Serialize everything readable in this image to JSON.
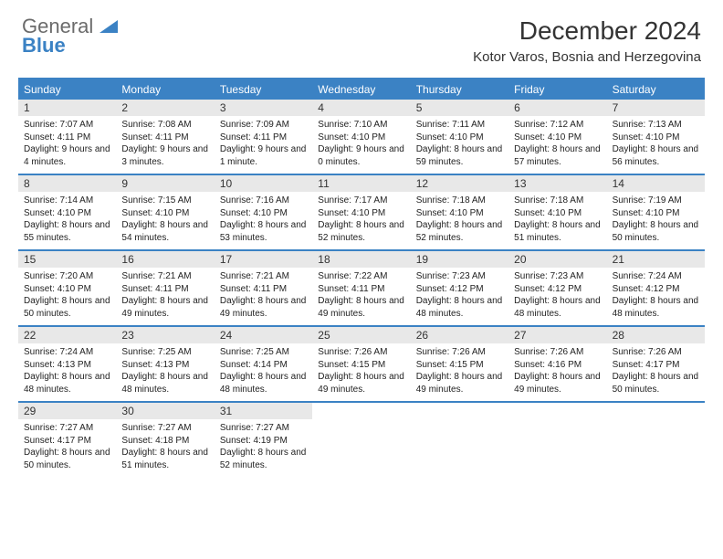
{
  "brand": {
    "general": "General",
    "blue": "Blue"
  },
  "title": "December 2024",
  "location": "Kotor Varos, Bosnia and Herzegovina",
  "colors": {
    "accent": "#3b82c4",
    "dow_bg": "#3b82c4",
    "dow_text": "#ffffff",
    "daynum_bg": "#e8e8e8",
    "text": "#333333",
    "background": "#ffffff"
  },
  "typography": {
    "title_fontsize": 28,
    "location_fontsize": 15,
    "dow_fontsize": 12,
    "daynum_fontsize": 12,
    "body_fontsize": 10
  },
  "dow": [
    "Sunday",
    "Monday",
    "Tuesday",
    "Wednesday",
    "Thursday",
    "Friday",
    "Saturday"
  ],
  "weeks": [
    [
      {
        "n": "1",
        "sunrise": "Sunrise: 7:07 AM",
        "sunset": "Sunset: 4:11 PM",
        "daylight": "Daylight: 9 hours and 4 minutes."
      },
      {
        "n": "2",
        "sunrise": "Sunrise: 7:08 AM",
        "sunset": "Sunset: 4:11 PM",
        "daylight": "Daylight: 9 hours and 3 minutes."
      },
      {
        "n": "3",
        "sunrise": "Sunrise: 7:09 AM",
        "sunset": "Sunset: 4:11 PM",
        "daylight": "Daylight: 9 hours and 1 minute."
      },
      {
        "n": "4",
        "sunrise": "Sunrise: 7:10 AM",
        "sunset": "Sunset: 4:10 PM",
        "daylight": "Daylight: 9 hours and 0 minutes."
      },
      {
        "n": "5",
        "sunrise": "Sunrise: 7:11 AM",
        "sunset": "Sunset: 4:10 PM",
        "daylight": "Daylight: 8 hours and 59 minutes."
      },
      {
        "n": "6",
        "sunrise": "Sunrise: 7:12 AM",
        "sunset": "Sunset: 4:10 PM",
        "daylight": "Daylight: 8 hours and 57 minutes."
      },
      {
        "n": "7",
        "sunrise": "Sunrise: 7:13 AM",
        "sunset": "Sunset: 4:10 PM",
        "daylight": "Daylight: 8 hours and 56 minutes."
      }
    ],
    [
      {
        "n": "8",
        "sunrise": "Sunrise: 7:14 AM",
        "sunset": "Sunset: 4:10 PM",
        "daylight": "Daylight: 8 hours and 55 minutes."
      },
      {
        "n": "9",
        "sunrise": "Sunrise: 7:15 AM",
        "sunset": "Sunset: 4:10 PM",
        "daylight": "Daylight: 8 hours and 54 minutes."
      },
      {
        "n": "10",
        "sunrise": "Sunrise: 7:16 AM",
        "sunset": "Sunset: 4:10 PM",
        "daylight": "Daylight: 8 hours and 53 minutes."
      },
      {
        "n": "11",
        "sunrise": "Sunrise: 7:17 AM",
        "sunset": "Sunset: 4:10 PM",
        "daylight": "Daylight: 8 hours and 52 minutes."
      },
      {
        "n": "12",
        "sunrise": "Sunrise: 7:18 AM",
        "sunset": "Sunset: 4:10 PM",
        "daylight": "Daylight: 8 hours and 52 minutes."
      },
      {
        "n": "13",
        "sunrise": "Sunrise: 7:18 AM",
        "sunset": "Sunset: 4:10 PM",
        "daylight": "Daylight: 8 hours and 51 minutes."
      },
      {
        "n": "14",
        "sunrise": "Sunrise: 7:19 AM",
        "sunset": "Sunset: 4:10 PM",
        "daylight": "Daylight: 8 hours and 50 minutes."
      }
    ],
    [
      {
        "n": "15",
        "sunrise": "Sunrise: 7:20 AM",
        "sunset": "Sunset: 4:10 PM",
        "daylight": "Daylight: 8 hours and 50 minutes."
      },
      {
        "n": "16",
        "sunrise": "Sunrise: 7:21 AM",
        "sunset": "Sunset: 4:11 PM",
        "daylight": "Daylight: 8 hours and 49 minutes."
      },
      {
        "n": "17",
        "sunrise": "Sunrise: 7:21 AM",
        "sunset": "Sunset: 4:11 PM",
        "daylight": "Daylight: 8 hours and 49 minutes."
      },
      {
        "n": "18",
        "sunrise": "Sunrise: 7:22 AM",
        "sunset": "Sunset: 4:11 PM",
        "daylight": "Daylight: 8 hours and 49 minutes."
      },
      {
        "n": "19",
        "sunrise": "Sunrise: 7:23 AM",
        "sunset": "Sunset: 4:12 PM",
        "daylight": "Daylight: 8 hours and 48 minutes."
      },
      {
        "n": "20",
        "sunrise": "Sunrise: 7:23 AM",
        "sunset": "Sunset: 4:12 PM",
        "daylight": "Daylight: 8 hours and 48 minutes."
      },
      {
        "n": "21",
        "sunrise": "Sunrise: 7:24 AM",
        "sunset": "Sunset: 4:12 PM",
        "daylight": "Daylight: 8 hours and 48 minutes."
      }
    ],
    [
      {
        "n": "22",
        "sunrise": "Sunrise: 7:24 AM",
        "sunset": "Sunset: 4:13 PM",
        "daylight": "Daylight: 8 hours and 48 minutes."
      },
      {
        "n": "23",
        "sunrise": "Sunrise: 7:25 AM",
        "sunset": "Sunset: 4:13 PM",
        "daylight": "Daylight: 8 hours and 48 minutes."
      },
      {
        "n": "24",
        "sunrise": "Sunrise: 7:25 AM",
        "sunset": "Sunset: 4:14 PM",
        "daylight": "Daylight: 8 hours and 48 minutes."
      },
      {
        "n": "25",
        "sunrise": "Sunrise: 7:26 AM",
        "sunset": "Sunset: 4:15 PM",
        "daylight": "Daylight: 8 hours and 49 minutes."
      },
      {
        "n": "26",
        "sunrise": "Sunrise: 7:26 AM",
        "sunset": "Sunset: 4:15 PM",
        "daylight": "Daylight: 8 hours and 49 minutes."
      },
      {
        "n": "27",
        "sunrise": "Sunrise: 7:26 AM",
        "sunset": "Sunset: 4:16 PM",
        "daylight": "Daylight: 8 hours and 49 minutes."
      },
      {
        "n": "28",
        "sunrise": "Sunrise: 7:26 AM",
        "sunset": "Sunset: 4:17 PM",
        "daylight": "Daylight: 8 hours and 50 minutes."
      }
    ],
    [
      {
        "n": "29",
        "sunrise": "Sunrise: 7:27 AM",
        "sunset": "Sunset: 4:17 PM",
        "daylight": "Daylight: 8 hours and 50 minutes."
      },
      {
        "n": "30",
        "sunrise": "Sunrise: 7:27 AM",
        "sunset": "Sunset: 4:18 PM",
        "daylight": "Daylight: 8 hours and 51 minutes."
      },
      {
        "n": "31",
        "sunrise": "Sunrise: 7:27 AM",
        "sunset": "Sunset: 4:19 PM",
        "daylight": "Daylight: 8 hours and 52 minutes."
      },
      null,
      null,
      null,
      null
    ]
  ]
}
